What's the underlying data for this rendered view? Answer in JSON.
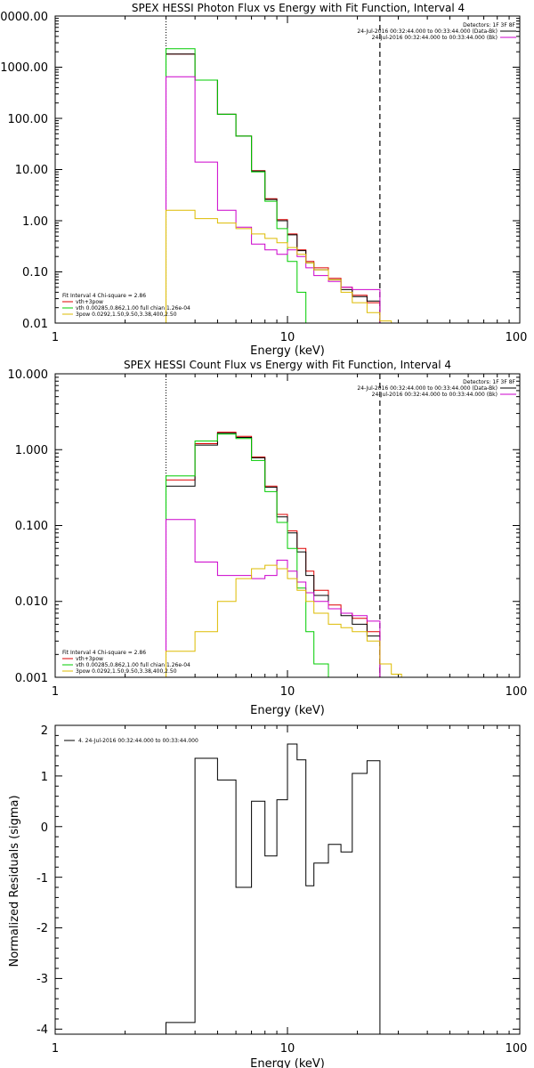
{
  "chart_data": [
    {
      "type": "line",
      "title": "SPEX HESSI Photon Flux vs Energy with Fit Function, Interval 4",
      "xlabel": "Energy (keV)",
      "ylabel": "",
      "x_scale": "log",
      "y_scale": "log",
      "xlim": [
        1,
        100
      ],
      "ylim": [
        0.01,
        10000
      ],
      "x_ticks": [
        "1",
        "10",
        "100"
      ],
      "y_ticks": [
        "0.01",
        "0.10",
        "1.00",
        "10.00",
        "100.00",
        "1000.00",
        "0000.00"
      ],
      "vlines": [
        3,
        25
      ],
      "legend_topright": {
        "header": "Detectors: 1F 3F 8F",
        "entries": [
          {
            "label": "24-Jul-2016 00:32:44.000 to 00:33:44.000 (Data-Bk)",
            "color": "#000000"
          },
          {
            "label": "24-Jul-2016 00:32:44.000 to 00:33:44.000 (Bk)",
            "color": "#cc00cc"
          }
        ]
      },
      "legend_bottomleft": {
        "header": "Fit Interval 4   Chi-square = 2.86",
        "entries": [
          {
            "label": "vth+3pow",
            "color": "#dd0000"
          },
          {
            "label": "vth 0.00285,0.862,1.00  full chian 1.26e-04",
            "color": "#00cc00"
          },
          {
            "label": "3pow 0.0292,1.50,9.50,3.38,400,2.50",
            "color": "#ddbb00"
          }
        ]
      },
      "bin_edges": [
        3,
        4,
        5,
        6,
        7,
        8,
        9,
        10,
        11,
        12,
        13,
        15,
        17,
        19,
        22,
        25,
        28,
        31
      ],
      "series": [
        {
          "color": "#dd0000",
          "values": [
            1800,
            560,
            120,
            45,
            9.5,
            2.7,
            1.05,
            0.55,
            0.27,
            0.16,
            0.12,
            0.075,
            0.05,
            0.035,
            0.025,
            null,
            null
          ]
        },
        {
          "color": "#000000",
          "values": [
            1800,
            560,
            120,
            45,
            9.3,
            2.6,
            1.0,
            0.53,
            0.26,
            0.15,
            0.11,
            0.07,
            0.045,
            0.033,
            0.027,
            null,
            null
          ]
        },
        {
          "color": "#00cc00",
          "values": [
            2300,
            560,
            120,
            45,
            9.0,
            2.4,
            0.7,
            0.16,
            0.04,
            0.009,
            null,
            null,
            null,
            null,
            null,
            null,
            null
          ]
        },
        {
          "color": "#cc00cc",
          "values": [
            650,
            14,
            1.6,
            0.75,
            0.35,
            0.27,
            0.22,
            0.27,
            0.2,
            0.12,
            0.085,
            0.065,
            0.05,
            0.045,
            0.045,
            null,
            null
          ]
        },
        {
          "color": "#ddbb00",
          "values": [
            1.6,
            1.1,
            0.9,
            0.7,
            0.55,
            0.45,
            0.37,
            0.3,
            0.22,
            0.15,
            0.11,
            0.07,
            0.04,
            0.025,
            0.016,
            0.011,
            0.009
          ]
        }
      ]
    },
    {
      "type": "line",
      "title": "SPEX HESSI Count Flux vs Energy with Fit Function, Interval 4",
      "xlabel": "Energy (keV)",
      "ylabel": "",
      "x_scale": "log",
      "y_scale": "log",
      "xlim": [
        1,
        100
      ],
      "ylim": [
        0.001,
        10
      ],
      "x_ticks": [
        "1",
        "10",
        "100"
      ],
      "y_ticks": [
        "0.001",
        "0.010",
        "0.100",
        "1.000",
        "10.000"
      ],
      "vlines": [
        3,
        25
      ],
      "legend_topright": {
        "header": "Detectors: 1F 3F 8F",
        "entries": [
          {
            "label": "24-Jul-2016 00:32:44.000 to 00:33:44.000 (Data-Bk)",
            "color": "#000000"
          },
          {
            "label": "24-Jul-2016 00:32:44.000 to 00:33:44.000 (Bk)",
            "color": "#cc00cc"
          }
        ]
      },
      "legend_bottomleft": {
        "header": "Fit Interval 4   Chi-square = 2.86",
        "entries": [
          {
            "label": "vth+3pow",
            "color": "#dd0000"
          },
          {
            "label": "vth 0.00285,0.862,1.00  full chian 1.26e-04",
            "color": "#00cc00"
          },
          {
            "label": "3pow 0.0292,1.50,9.50,3.38,400,2.50",
            "color": "#ddbb00"
          }
        ]
      },
      "bin_edges": [
        3,
        4,
        5,
        6,
        7,
        8,
        9,
        10,
        11,
        12,
        13,
        15,
        17,
        19,
        22,
        25,
        28,
        31
      ],
      "series": [
        {
          "color": "#dd0000",
          "values": [
            0.4,
            1.2,
            1.7,
            1.5,
            0.8,
            0.33,
            0.14,
            0.085,
            0.05,
            0.025,
            0.014,
            0.009,
            0.007,
            0.006,
            0.004,
            null,
            null
          ]
        },
        {
          "color": "#000000",
          "values": [
            0.33,
            1.15,
            1.65,
            1.45,
            0.78,
            0.32,
            0.13,
            0.08,
            0.045,
            0.022,
            0.012,
            0.008,
            0.0065,
            0.005,
            0.0035,
            null,
            null
          ]
        },
        {
          "color": "#00cc00",
          "values": [
            0.45,
            1.3,
            1.6,
            1.4,
            0.72,
            0.28,
            0.11,
            0.05,
            0.015,
            0.004,
            0.0015,
            null,
            null,
            null,
            null,
            null,
            null
          ]
        },
        {
          "color": "#cc00cc",
          "values": [
            0.12,
            0.033,
            0.022,
            0.022,
            0.02,
            0.022,
            0.035,
            0.025,
            0.018,
            0.013,
            0.01,
            0.008,
            0.007,
            0.0065,
            0.0055,
            null,
            null
          ]
        },
        {
          "color": "#ddbb00",
          "values": [
            0.0022,
            0.004,
            0.01,
            0.02,
            0.027,
            0.03,
            0.027,
            0.02,
            0.014,
            0.01,
            0.007,
            0.005,
            0.0045,
            0.004,
            0.003,
            0.0015,
            0.0011
          ]
        }
      ]
    },
    {
      "type": "line",
      "title": "",
      "xlabel": "Energy (keV)",
      "ylabel": "Normalized Residuals (sigma)",
      "x_scale": "log",
      "y_scale": "linear",
      "xlim": [
        1,
        100
      ],
      "ylim": [
        -4.1,
        2.0
      ],
      "x_ticks": [
        "1",
        "10",
        "100"
      ],
      "y_ticks": [
        "-4",
        "-3",
        "-2",
        "-1",
        "0",
        "1",
        "2"
      ],
      "legend_topleft": {
        "entries": [
          {
            "label": "4. 24-Jul-2016 00:32:44.000 to 00:33:44.000",
            "color": "#000000"
          }
        ]
      },
      "bin_edges": [
        3,
        4,
        5,
        6,
        7,
        8,
        9,
        10,
        11,
        12,
        13,
        15,
        17,
        19,
        22,
        25
      ],
      "series": [
        {
          "color": "#000000",
          "values": [
            -3.87,
            1.35,
            0.92,
            -1.2,
            0.5,
            -0.58,
            0.53,
            1.63,
            1.32,
            -1.17,
            -0.72,
            -0.35,
            -0.5,
            1.05,
            1.3
          ]
        }
      ]
    }
  ]
}
